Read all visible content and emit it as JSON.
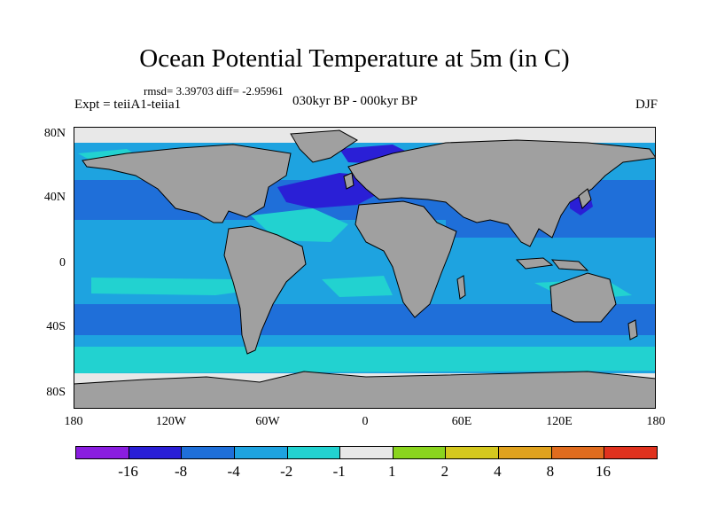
{
  "figure": {
    "title": "Ocean Potential Temperature at 5m (in C)",
    "stats": "rmsd= 3.39703 diff= -2.95961",
    "experiment": "Expt = teiiA1-teiia1",
    "period": "030kyr BP - 000kyr BP",
    "season": "DJF"
  },
  "axes": {
    "lat_labels": [
      "80N",
      "40N",
      "0",
      "40S",
      "80S"
    ],
    "lon_labels": [
      "180",
      "120W",
      "60W",
      "0",
      "60E",
      "120E",
      "180"
    ]
  },
  "colorbar": {
    "labels": [
      "-16",
      "-8",
      "-4",
      "-2",
      "-1",
      "1",
      "2",
      "4",
      "8",
      "16"
    ],
    "colors": [
      "#8a1de0",
      "#2a1fd6",
      "#1f6fd9",
      "#1ea3e0",
      "#22d2d0",
      "#e8e8e8",
      "#8ad41e",
      "#d4c81e",
      "#e0a21e",
      "#e06c1e",
      "#e0321e"
    ]
  },
  "map_colors": {
    "land": "#a0a0a0",
    "ocean_main": "#1ea3e0",
    "ocean_cool": "#1f6fd9",
    "ocean_cold": "#2a1fd6",
    "ocean_mild": "#22d2d0",
    "sea_ice": "#e8e8e8"
  }
}
